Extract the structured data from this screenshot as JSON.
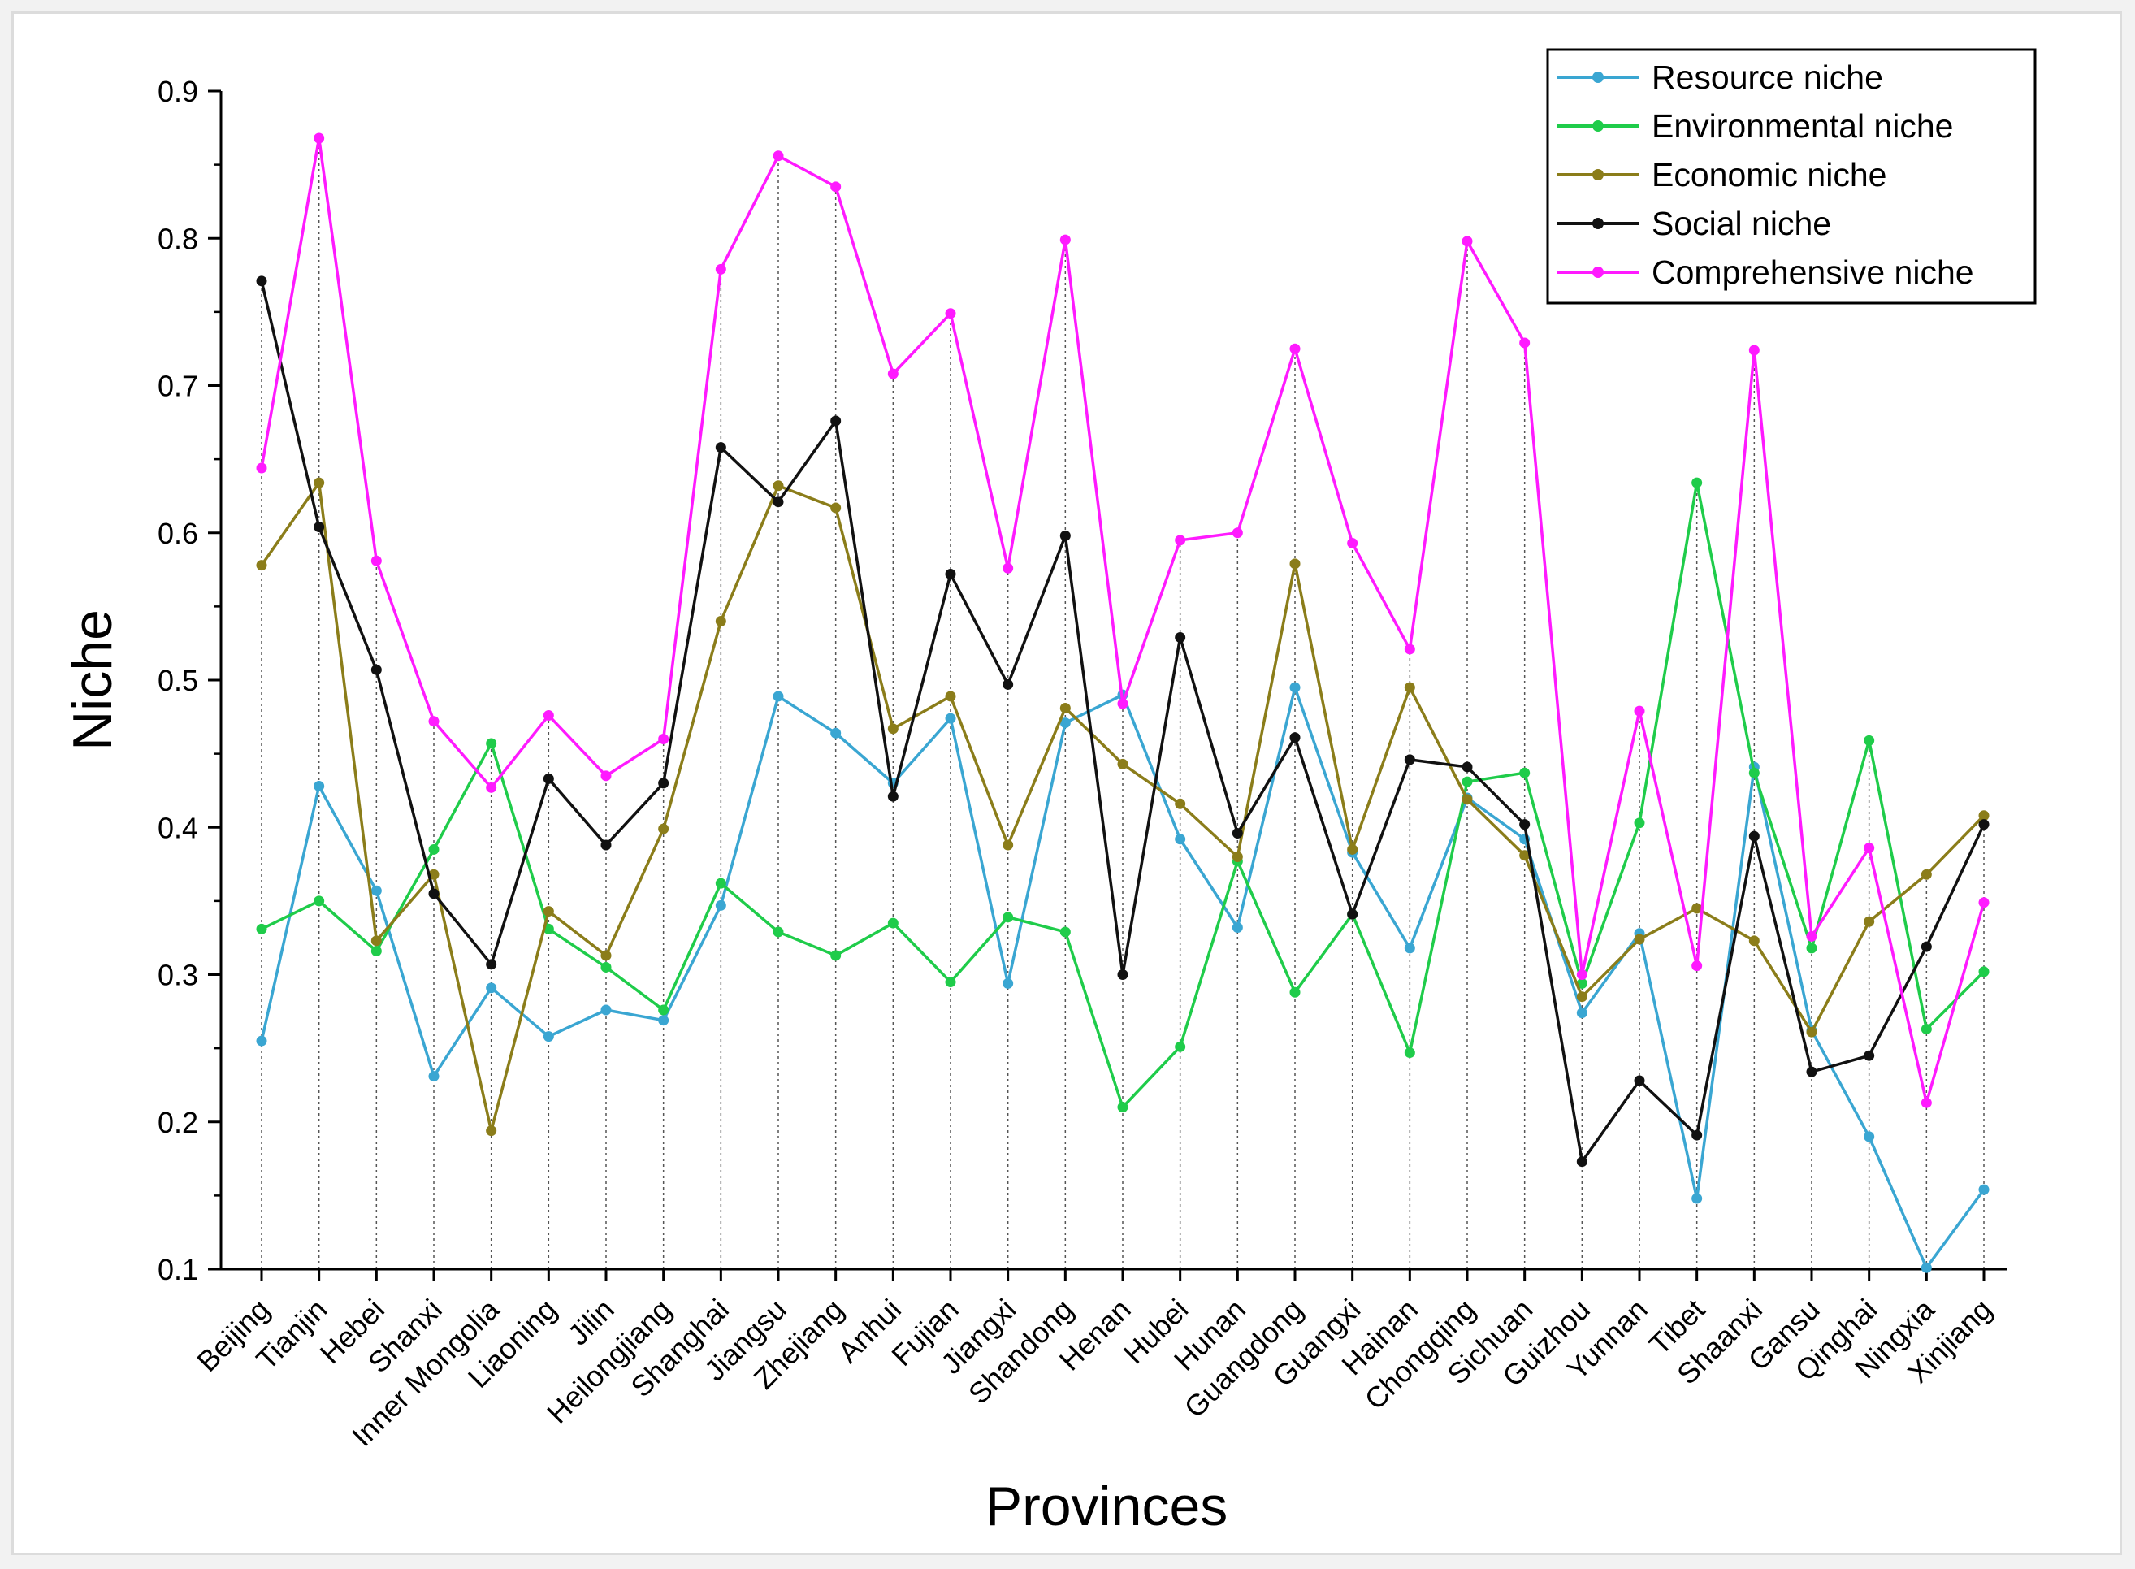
{
  "chart_data": {
    "type": "line",
    "title": "",
    "xlabel": "Provinces",
    "ylabel": "Niche",
    "ylim": [
      0.1,
      0.9
    ],
    "yticks": [
      "0.1",
      "0.2",
      "0.3",
      "0.4",
      "0.5",
      "0.6",
      "0.7",
      "0.8",
      "0.9"
    ],
    "legend_position": "top-right",
    "categories": [
      "Beijing",
      "Tianjin",
      "Hebei",
      "Shanxi",
      "Inner Mongolia",
      "Liaoning",
      "Jilin",
      "Heilongjiang",
      "Shanghai",
      "Jiangsu",
      "Zhejiang",
      "Anhui",
      "Fujian",
      "Jiangxi",
      "Shandong",
      "Henan",
      "Hubei",
      "Hunan",
      "Guangdong",
      "Guangxi",
      "Hainan",
      "Chongqing",
      "Sichuan",
      "Guizhou",
      "Yunnan",
      "Tibet",
      "Shaanxi",
      "Gansu",
      "Qinghai",
      "Ningxia",
      "Xinjiang"
    ],
    "series": [
      {
        "name": "Resource niche",
        "color": "#3aa6d2",
        "values": [
          0.255,
          0.428,
          0.357,
          0.231,
          0.291,
          0.258,
          0.276,
          0.269,
          0.347,
          0.489,
          0.464,
          0.43,
          0.474,
          0.294,
          0.471,
          0.49,
          0.392,
          0.332,
          0.495,
          0.383,
          0.318,
          0.42,
          0.392,
          0.274,
          0.328,
          0.148,
          0.441,
          0.262,
          0.19,
          0.101,
          0.154
        ]
      },
      {
        "name": "Environmental niche",
        "color": "#1fcc4a",
        "values": [
          0.331,
          0.35,
          0.316,
          0.385,
          0.457,
          0.331,
          0.305,
          0.276,
          0.362,
          0.329,
          0.313,
          0.335,
          0.295,
          0.339,
          0.329,
          0.21,
          0.251,
          0.377,
          0.288,
          0.341,
          0.247,
          0.431,
          0.437,
          0.294,
          0.403,
          0.634,
          0.437,
          0.318,
          0.459,
          0.263,
          0.302
        ]
      },
      {
        "name": "Economic niche",
        "color": "#8b7d1a",
        "values": [
          0.578,
          0.634,
          0.323,
          0.368,
          0.194,
          0.343,
          0.313,
          0.399,
          0.54,
          0.632,
          0.617,
          0.467,
          0.489,
          0.388,
          0.481,
          0.443,
          0.416,
          0.38,
          0.579,
          0.385,
          0.495,
          0.419,
          0.381,
          0.285,
          0.324,
          0.345,
          0.323,
          0.261,
          0.336,
          0.368,
          0.408
        ]
      },
      {
        "name": "Social niche",
        "color": "#111111",
        "values": [
          0.771,
          0.604,
          0.507,
          0.355,
          0.307,
          0.433,
          0.388,
          0.43,
          0.658,
          0.621,
          0.676,
          0.421,
          0.572,
          0.497,
          0.598,
          0.3,
          0.529,
          0.396,
          0.461,
          0.341,
          0.446,
          0.441,
          0.402,
          0.173,
          0.228,
          0.191,
          0.394,
          0.234,
          0.245,
          0.319,
          0.402
        ]
      },
      {
        "name": "Comprehensive niche",
        "color": "#ff1aff",
        "values": [
          0.644,
          0.868,
          0.581,
          0.472,
          0.427,
          0.476,
          0.435,
          0.46,
          0.779,
          0.856,
          0.835,
          0.708,
          0.749,
          0.576,
          0.799,
          0.484,
          0.595,
          0.6,
          0.725,
          0.593,
          0.521,
          0.798,
          0.729,
          0.3,
          0.479,
          0.306,
          0.724,
          0.326,
          0.386,
          0.213,
          0.349
        ]
      }
    ]
  }
}
